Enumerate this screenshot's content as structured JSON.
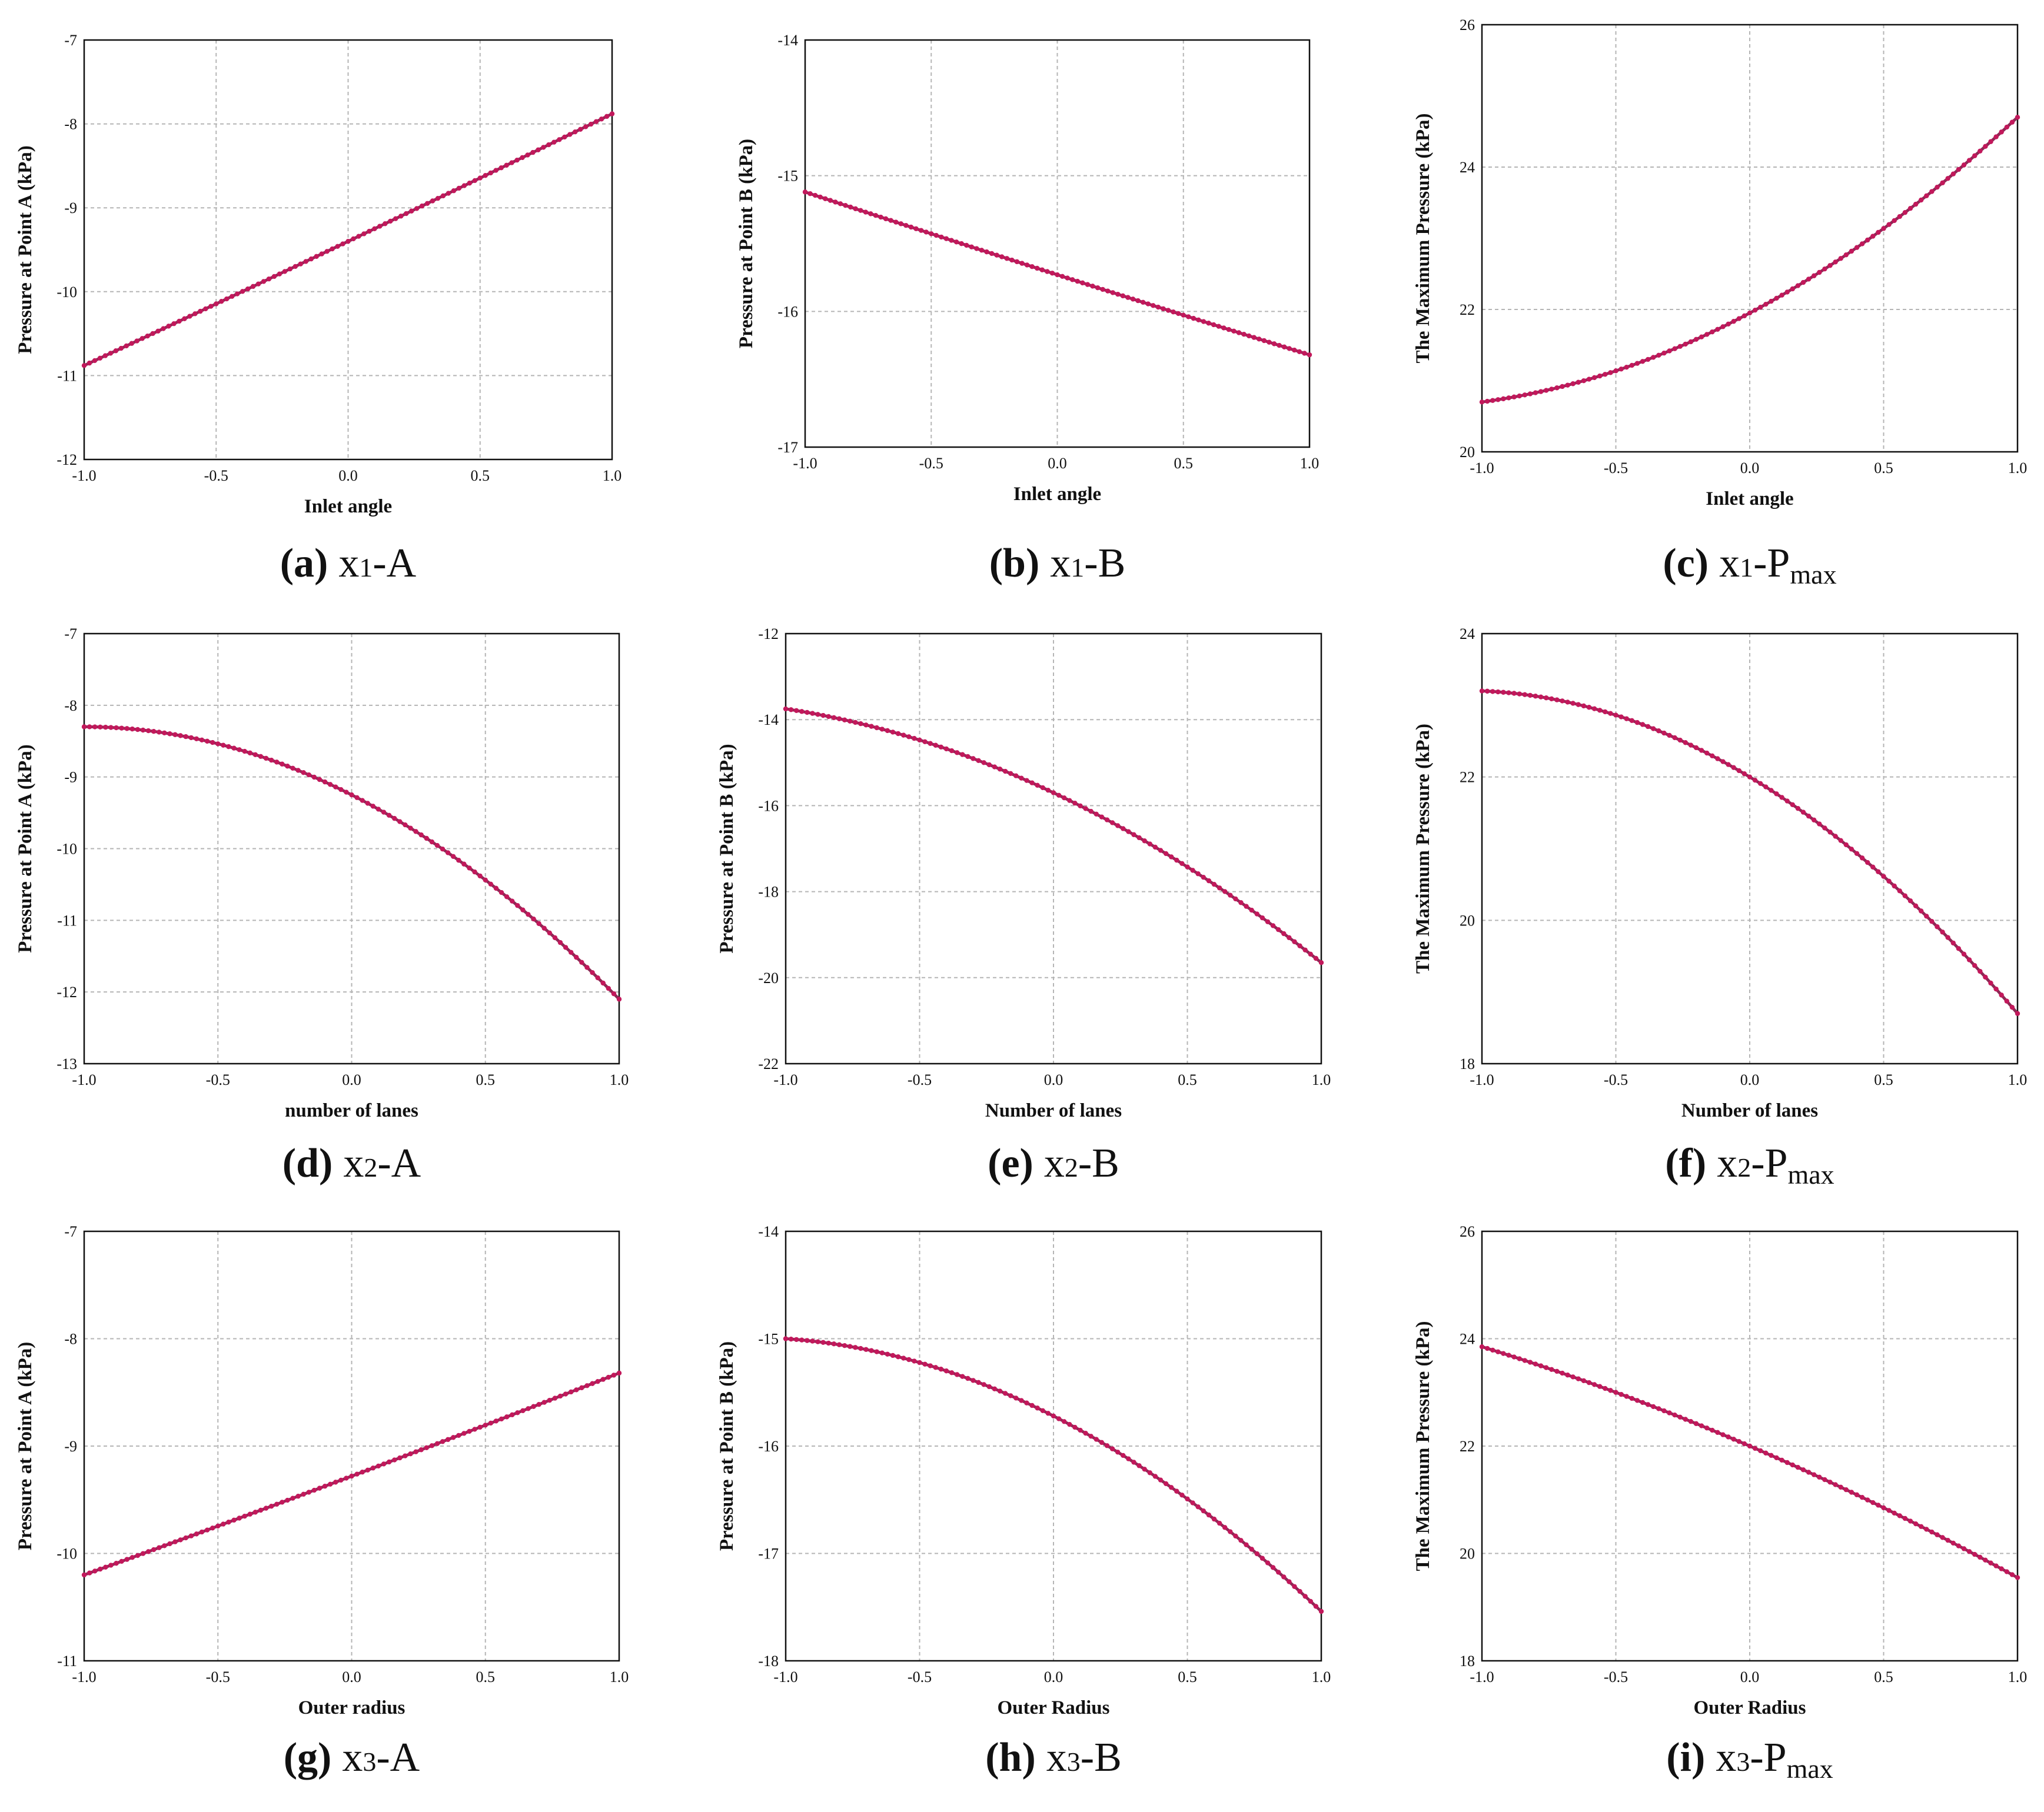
{
  "colors": {
    "line": "#8b2a55",
    "marker": "#c2185b"
  },
  "chart_data": [
    {
      "type": "line",
      "caption_label": "(a)",
      "caption_var": "x",
      "caption_sub": "1",
      "caption_resp": "-A",
      "caption_resp_sub": "",
      "xlabel": "Inlet angle",
      "ylabel": "Pressure at Point A (kPa)",
      "xlim": [
        -1,
        1
      ],
      "ylim": [
        -12,
        -7
      ],
      "xticks": [
        "-1.0",
        "-0.5",
        "0.0",
        "0.5",
        "1.0"
      ],
      "yticks": [
        "-12",
        "-11",
        "-10",
        "-9",
        "-8",
        "-7"
      ],
      "coeffs": [
        -9.4,
        1.5,
        0.02
      ],
      "grid": true
    },
    {
      "type": "line",
      "caption_label": "(b)",
      "caption_var": "x",
      "caption_sub": "1",
      "caption_resp": "-B",
      "caption_resp_sub": "",
      "xlabel": "Inlet angle",
      "ylabel": "Pressure at Point B (kPa)",
      "xlim": [
        -1,
        1
      ],
      "ylim": [
        -17,
        -14
      ],
      "xticks": [
        "-1.0",
        "-0.5",
        "0.0",
        "0.5",
        "1.0"
      ],
      "yticks": [
        "-17",
        "-16",
        "-15",
        "-14"
      ],
      "coeffs": [
        -15.73,
        -0.6,
        0.01
      ],
      "grid": true
    },
    {
      "type": "line",
      "caption_label": "(c)",
      "caption_var": "x",
      "caption_sub": "1",
      "caption_resp": "-P",
      "caption_resp_sub": "max",
      "xlabel": "Inlet angle",
      "ylabel": "The Maximum Pressure (kPa)",
      "xlim": [
        -1,
        1
      ],
      "ylim": [
        20,
        26
      ],
      "xticks": [
        "-1.0",
        "-0.5",
        "0.0",
        "0.5",
        "1.0"
      ],
      "yticks": [
        "20",
        "22",
        "24",
        "26"
      ],
      "coeffs": [
        21.95,
        2.0,
        0.75
      ],
      "grid": true
    },
    {
      "type": "line",
      "caption_label": "(d)",
      "caption_var": "x",
      "caption_sub": "2",
      "caption_resp": "-A",
      "caption_resp_sub": "",
      "xlabel": "number of lanes",
      "ylabel": "Pressure at Point A (kPa)",
      "xlim": [
        -1,
        1
      ],
      "ylim": [
        -13,
        -7
      ],
      "xticks": [
        "-1.0",
        "-0.5",
        "0.0",
        "0.5",
        "1.0"
      ],
      "yticks": [
        "-13",
        "-12",
        "-11",
        "-10",
        "-9",
        "-8",
        "-7"
      ],
      "coeffs": [
        -9.25,
        -1.9,
        -0.95
      ],
      "grid": true
    },
    {
      "type": "line",
      "caption_label": "(e)",
      "caption_var": "x",
      "caption_sub": "2",
      "caption_resp": "-B",
      "caption_resp_sub": "",
      "xlabel": "Number of lanes",
      "ylabel": "Pressure at Point B (kPa)",
      "xlim": [
        -1,
        1
      ],
      "ylim": [
        -22,
        -12
      ],
      "xticks": [
        "-1.0",
        "-0.5",
        "0.0",
        "0.5",
        "1.0"
      ],
      "yticks": [
        "-22",
        "-20",
        "-18",
        "-16",
        "-14",
        "-12"
      ],
      "coeffs": [
        -15.7,
        -2.95,
        -1.0
      ],
      "grid": true
    },
    {
      "type": "line",
      "caption_label": "(f)",
      "caption_var": "x",
      "caption_sub": "2",
      "caption_resp": "-P",
      "caption_resp_sub": "max",
      "xlabel": "Number of lanes",
      "ylabel": "The Maximum Pressure (kPa)",
      "xlim": [
        -1,
        1
      ],
      "ylim": [
        18,
        24
      ],
      "xticks": [
        "-1.0",
        "-0.5",
        "0.0",
        "0.5",
        "1.0"
      ],
      "yticks": [
        "18",
        "20",
        "22",
        "24"
      ],
      "coeffs": [
        22.0,
        -2.25,
        -1.05
      ],
      "grid": true
    },
    {
      "type": "line",
      "caption_label": "(g)",
      "caption_var": "x",
      "caption_sub": "3",
      "caption_resp": "-A",
      "caption_resp_sub": "",
      "xlabel": "Outer radius",
      "ylabel": "Pressure at Point A (kPa)",
      "xlim": [
        -1,
        1
      ],
      "ylim": [
        -11,
        -7
      ],
      "xticks": [
        "-1.0",
        "-0.5",
        "0.0",
        "0.5",
        "1.0"
      ],
      "yticks": [
        "-11",
        "-10",
        "-9",
        "-8",
        "-7"
      ],
      "coeffs": [
        -9.28,
        0.94,
        0.02
      ],
      "grid": true
    },
    {
      "type": "line",
      "caption_label": "(h)",
      "caption_var": "x",
      "caption_sub": "3",
      "caption_resp": "-B",
      "caption_resp_sub": "",
      "xlabel": "Outer Radius",
      "ylabel": "Pressure at Point B (kPa)",
      "xlim": [
        -1,
        1
      ],
      "ylim": [
        -18,
        -14
      ],
      "xticks": [
        "-1.0",
        "-0.5",
        "0.0",
        "0.5",
        "1.0"
      ],
      "yticks": [
        "-18",
        "-17",
        "-16",
        "-15",
        "-14"
      ],
      "coeffs": [
        -15.72,
        -1.27,
        -0.55
      ],
      "grid": true
    },
    {
      "type": "line",
      "caption_label": "(i)",
      "caption_var": "x",
      "caption_sub": "3",
      "caption_resp": "-P",
      "caption_resp_sub": "max",
      "xlabel": "Outer Radius",
      "ylabel": "The Maximum Pressure (kPa)",
      "xlim": [
        -1,
        1
      ],
      "ylim": [
        18,
        26
      ],
      "xticks": [
        "-1.0",
        "-0.5",
        "0.0",
        "0.5",
        "1.0"
      ],
      "yticks": [
        "18",
        "20",
        "22",
        "24",
        "26"
      ],
      "coeffs": [
        22.0,
        -2.15,
        -0.3
      ],
      "grid": true
    }
  ]
}
